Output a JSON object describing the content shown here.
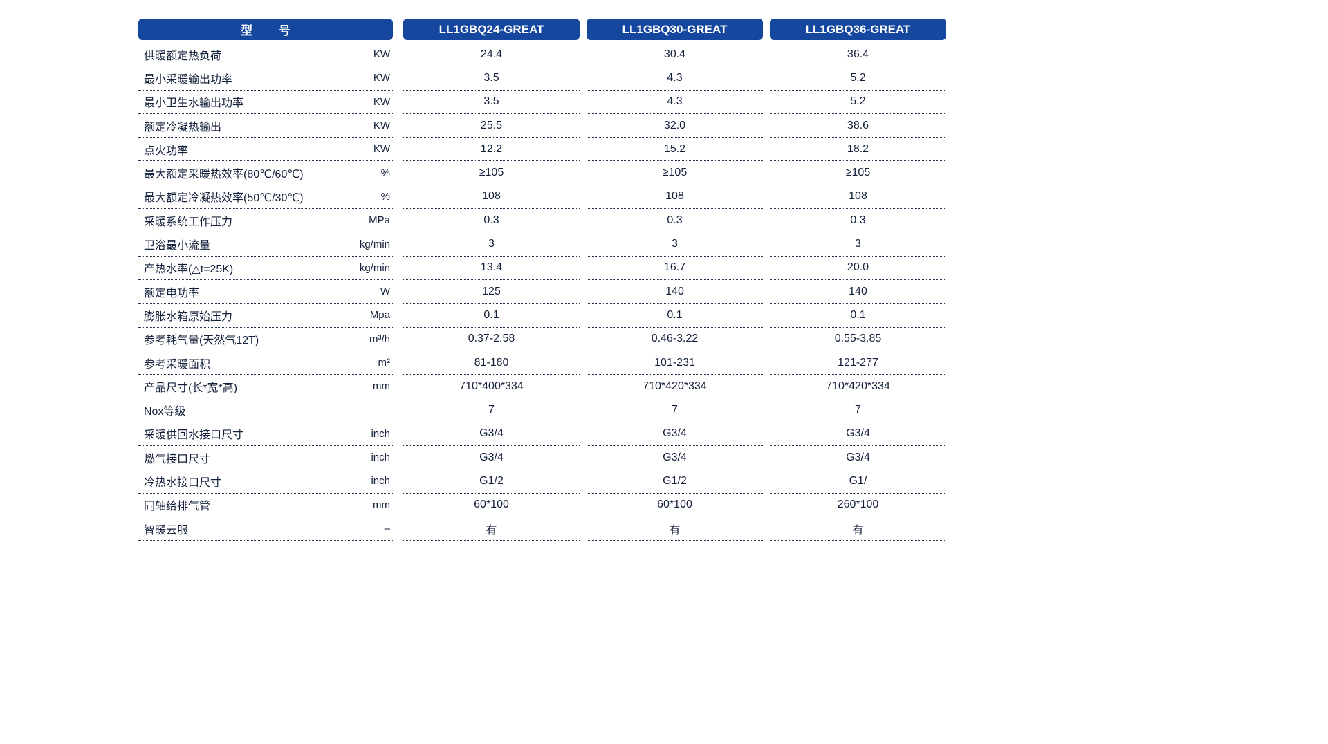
{
  "colors": {
    "header_bg": "#16479e",
    "header_text": "#ffffff",
    "body_text": "#13203a",
    "dotted_line": "#25304d",
    "page_bg": "#ffffff"
  },
  "chart_data": {
    "type": "table",
    "header": {
      "model_label": "型        号",
      "columns": [
        "LL1GBQ24-GREAT",
        "LL1GBQ30-GREAT",
        "LL1GBQ36-GREAT"
      ]
    },
    "rows": [
      {
        "label": "供暖额定热负荷",
        "unit": "KW",
        "values": [
          "24.4",
          "30.4",
          "36.4"
        ]
      },
      {
        "label": "最小采暖输出功率",
        "unit": "KW",
        "values": [
          "3.5",
          "4.3",
          "5.2"
        ]
      },
      {
        "label": "最小卫生水输出功率",
        "unit": "KW",
        "values": [
          "3.5",
          "4.3",
          "5.2"
        ]
      },
      {
        "label": "额定冷凝热输出",
        "unit": "KW",
        "values": [
          "25.5",
          "32.0",
          "38.6"
        ]
      },
      {
        "label": "点火功率",
        "unit": "KW",
        "values": [
          "12.2",
          "15.2",
          "18.2"
        ]
      },
      {
        "label": "最大额定采暖热效率(80℃/60℃)",
        "unit": "%",
        "values": [
          "≥105",
          "≥105",
          "≥105"
        ]
      },
      {
        "label": "最大额定冷凝热效率(50℃/30℃)",
        "unit": "%",
        "values": [
          "108",
          "108",
          "108"
        ]
      },
      {
        "label": "采暖系统工作压力",
        "unit": "MPa",
        "values": [
          "0.3",
          "0.3",
          "0.3"
        ]
      },
      {
        "label": "卫浴最小流量",
        "unit": "kg/min",
        "values": [
          "3",
          "3",
          "3"
        ]
      },
      {
        "label": "产热水率(△t=25K)",
        "unit": "kg/min",
        "values": [
          "13.4",
          "16.7",
          "20.0"
        ]
      },
      {
        "label": "额定电功率",
        "unit": "W",
        "values": [
          "125",
          "140",
          "140"
        ]
      },
      {
        "label": "膨胀水箱原始压力",
        "unit": "Mpa",
        "values": [
          "0.1",
          "0.1",
          "0.1"
        ]
      },
      {
        "label": "参考耗气量(天然气12T)",
        "unit": "m³/h",
        "values": [
          "0.37-2.58",
          "0.46-3.22",
          "0.55-3.85"
        ]
      },
      {
        "label": "参考采暖面积",
        "unit": "m²",
        "values": [
          "81-180",
          "101-231",
          "121-277"
        ]
      },
      {
        "label": "产品尺寸(长*宽*高)",
        "unit": "mm",
        "values": [
          "710*400*334",
          "710*420*334",
          "710*420*334"
        ]
      },
      {
        "label": "Nox等级",
        "unit": "",
        "values": [
          "7",
          "7",
          "7"
        ]
      },
      {
        "label": "采暖供回水接口尺寸",
        "unit": "inch",
        "values": [
          "G3/4",
          "G3/4",
          "G3/4"
        ]
      },
      {
        "label": "燃气接口尺寸",
        "unit": "inch",
        "values": [
          "G3/4",
          "G3/4",
          "G3/4"
        ]
      },
      {
        "label": "冷热水接口尺寸",
        "unit": "inch",
        "values": [
          "G1/2",
          "G1/2",
          "G1/"
        ]
      },
      {
        "label": "同轴给排气管",
        "unit": "mm",
        "values": [
          "60*100",
          "60*100",
          "260*100"
        ]
      },
      {
        "label": "智暖云服",
        "unit": "–",
        "values": [
          "有",
          "有",
          "有"
        ]
      }
    ]
  }
}
